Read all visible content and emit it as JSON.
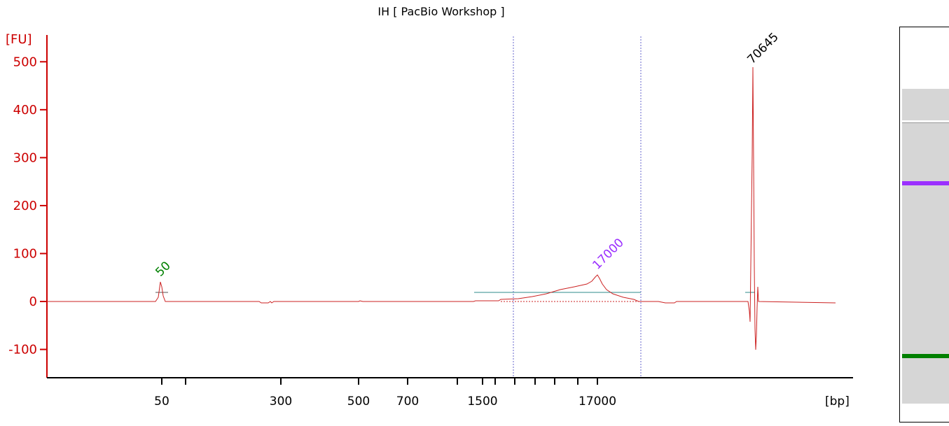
{
  "chart_data": {
    "type": "line",
    "title": "IH  [ PacBio Workshop ]",
    "ylabel": "[FU]",
    "xlabel": "[bp]",
    "ylim": [
      -160,
      560
    ],
    "y_ticks": [
      500,
      400,
      300,
      200,
      100,
      0,
      -100
    ],
    "x_ticks": [
      "50",
      "300",
      "500",
      "700",
      "1500",
      "17000"
    ],
    "peak_labels": [
      {
        "text": "50",
        "color": "#008000"
      },
      {
        "text": "17000",
        "color": "#9b30ff"
      },
      {
        "text": "70645",
        "color": "#000000"
      }
    ],
    "colors": {
      "trace": "#cc2222",
      "axis": "#cc0000",
      "region": "#6666cc",
      "baseline": "#2e8b8b"
    },
    "gel": {
      "bands": [
        {
          "marker": "70645",
          "color": "#ffffff"
        },
        {
          "marker": "17000",
          "color": "#9b30ff"
        },
        {
          "marker": "50",
          "color": "#008000"
        }
      ]
    }
  }
}
